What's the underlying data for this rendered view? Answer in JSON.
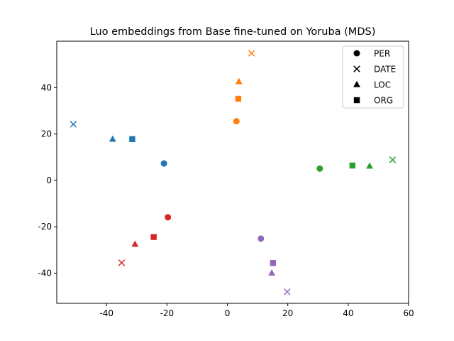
{
  "chart_data": {
    "type": "scatter",
    "title": "Luo embeddings from Base fine-tuned on Yoruba (MDS)",
    "xlabel": "",
    "ylabel": "",
    "xlim": [
      -56.5,
      60
    ],
    "ylim": [
      -53,
      60
    ],
    "xticks": [
      -40,
      -20,
      0,
      20,
      40,
      60
    ],
    "yticks": [
      -40,
      -20,
      0,
      20,
      40
    ],
    "grid": false,
    "legend": {
      "placement": "top-right",
      "entries": [
        {
          "label": "PER",
          "marker": "circle"
        },
        {
          "label": "DATE",
          "marker": "x"
        },
        {
          "label": "LOC",
          "marker": "triangle"
        },
        {
          "label": "ORG",
          "marker": "square"
        }
      ]
    },
    "points": [
      {
        "x": -51.0,
        "y": 24.2,
        "marker": "x",
        "color": "#1f77b4"
      },
      {
        "x": -38.0,
        "y": 17.8,
        "marker": "triangle",
        "color": "#1f77b4"
      },
      {
        "x": -31.5,
        "y": 17.8,
        "marker": "square",
        "color": "#1f77b4"
      },
      {
        "x": -21.0,
        "y": 7.3,
        "marker": "circle",
        "color": "#1f77b4"
      },
      {
        "x": 8.0,
        "y": 54.8,
        "marker": "x",
        "color": "#ff7f0e"
      },
      {
        "x": 3.8,
        "y": 42.6,
        "marker": "triangle",
        "color": "#ff7f0e"
      },
      {
        "x": 3.6,
        "y": 35.2,
        "marker": "square",
        "color": "#ff7f0e"
      },
      {
        "x": 3.0,
        "y": 25.5,
        "marker": "circle",
        "color": "#ff7f0e"
      },
      {
        "x": 54.7,
        "y": 8.9,
        "marker": "x",
        "color": "#2ca02c"
      },
      {
        "x": 47.1,
        "y": 6.2,
        "marker": "triangle",
        "color": "#2ca02c"
      },
      {
        "x": 41.4,
        "y": 6.4,
        "marker": "square",
        "color": "#2ca02c"
      },
      {
        "x": 30.6,
        "y": 5.1,
        "marker": "circle",
        "color": "#2ca02c"
      },
      {
        "x": -19.7,
        "y": -15.9,
        "marker": "circle",
        "color": "#d62728"
      },
      {
        "x": -24.4,
        "y": -24.4,
        "marker": "square",
        "color": "#d62728"
      },
      {
        "x": -30.6,
        "y": -27.5,
        "marker": "triangle",
        "color": "#d62728"
      },
      {
        "x": -35.0,
        "y": -35.5,
        "marker": "x",
        "color": "#d62728"
      },
      {
        "x": 11.1,
        "y": -25.1,
        "marker": "circle",
        "color": "#9467bd"
      },
      {
        "x": 15.1,
        "y": -35.6,
        "marker": "square",
        "color": "#9467bd"
      },
      {
        "x": 14.7,
        "y": -39.9,
        "marker": "triangle",
        "color": "#9467bd"
      },
      {
        "x": 19.8,
        "y": -48.0,
        "marker": "x",
        "color": "#9467bd"
      }
    ]
  }
}
